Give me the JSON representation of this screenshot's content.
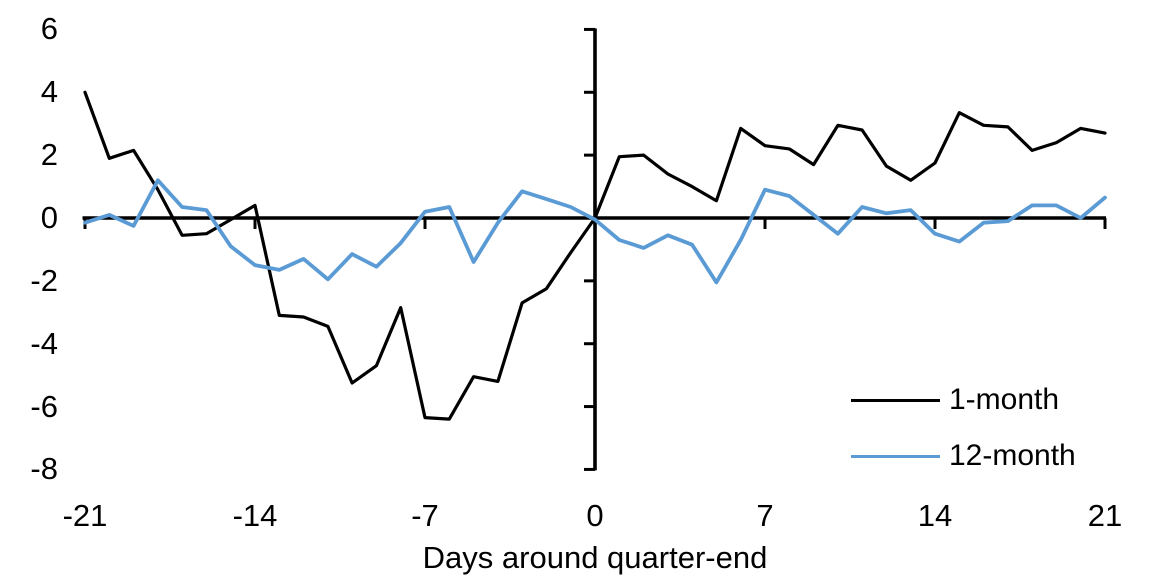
{
  "figure": {
    "xlabel": "Days around quarter-end",
    "background": "#ffffff",
    "axis_color": "#000000",
    "legend": [
      {
        "label": "1-month",
        "color": "#000000"
      },
      {
        "label": "12-month",
        "color": "#5B9BD5"
      }
    ]
  },
  "chart_data": {
    "type": "line",
    "x": [
      -21,
      -20,
      -19,
      -18,
      -17,
      -16,
      -15,
      -14,
      -13,
      -12,
      -11,
      -10,
      -9,
      -8,
      -7,
      -6,
      -5,
      -4,
      -3,
      -2,
      -1,
      0,
      1,
      2,
      3,
      4,
      5,
      6,
      7,
      8,
      9,
      10,
      11,
      12,
      13,
      14,
      15,
      16,
      17,
      18,
      19,
      20,
      21
    ],
    "series": [
      {
        "name": "1-month",
        "color": "#000000",
        "values": [
          4.0,
          1.9,
          2.15,
          0.9,
          -0.55,
          -0.5,
          -0.05,
          0.4,
          -3.1,
          -3.15,
          -3.45,
          -5.25,
          -4.7,
          -2.85,
          -6.35,
          -6.4,
          -5.05,
          -5.2,
          -2.7,
          -2.25,
          -1.1,
          0.0,
          1.95,
          2.0,
          1.4,
          1.0,
          0.55,
          2.85,
          2.3,
          2.2,
          1.7,
          2.95,
          2.8,
          1.65,
          1.2,
          1.75,
          3.35,
          2.95,
          2.9,
          2.15,
          2.4,
          2.85,
          2.7
        ]
      },
      {
        "name": "12-month",
        "color": "#5B9BD5",
        "values": [
          -0.15,
          0.1,
          -0.25,
          1.2,
          0.35,
          0.25,
          -0.9,
          -1.5,
          -1.65,
          -1.3,
          -1.95,
          -1.15,
          -1.55,
          -0.8,
          0.2,
          0.35,
          -1.4,
          -0.15,
          0.85,
          0.6,
          0.35,
          -0.05,
          -0.7,
          -0.95,
          -0.55,
          -0.85,
          -2.05,
          -0.7,
          0.9,
          0.7,
          0.1,
          -0.5,
          0.35,
          0.15,
          0.25,
          -0.5,
          -0.75,
          -0.15,
          -0.1,
          0.4,
          0.4,
          0.0,
          0.65
        ]
      }
    ],
    "title": "",
    "xlabel": "Days around quarter-end",
    "ylabel": "",
    "xticks": [
      -21,
      -14,
      -7,
      0,
      7,
      14,
      21
    ],
    "yticks": [
      6,
      4,
      2,
      0,
      -2,
      -4,
      -6,
      -8
    ],
    "xlim": [
      -21,
      21
    ],
    "ylim": [
      -8,
      6
    ],
    "grid": false,
    "legend_position": "lower right"
  }
}
